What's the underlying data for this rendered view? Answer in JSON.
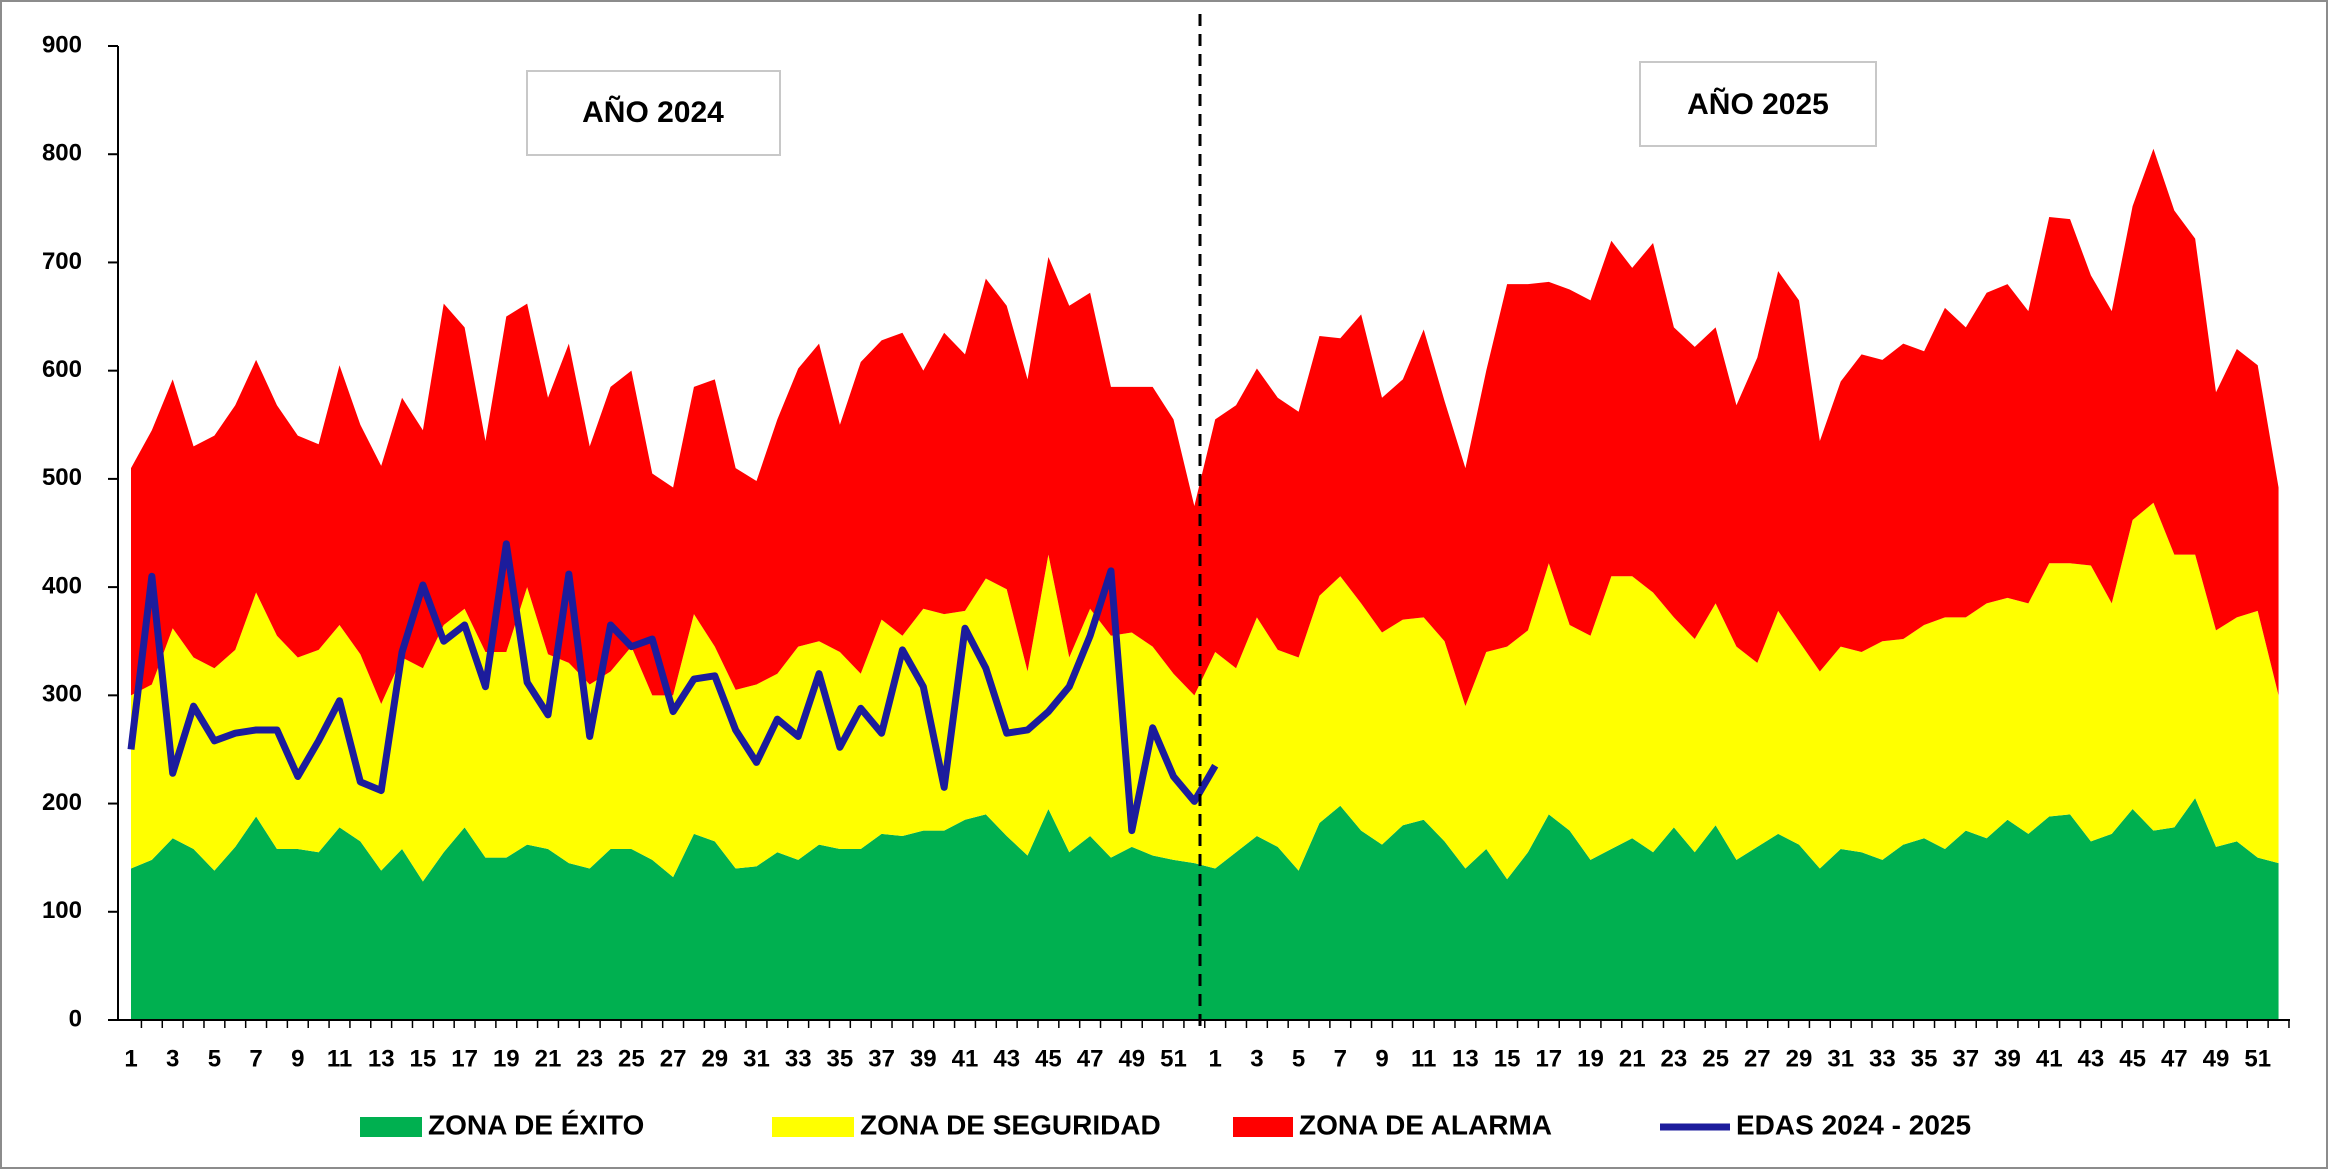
{
  "chart_data": {
    "type": "area",
    "stacked": true,
    "annotations": [
      "AÑO 2024",
      "AÑO 2025"
    ],
    "categories": [
      "1",
      null,
      "3",
      null,
      "5",
      null,
      "7",
      null,
      "9",
      null,
      "11",
      null,
      "13",
      null,
      "15",
      null,
      "17",
      null,
      "19",
      null,
      "21",
      null,
      "23",
      null,
      "25",
      null,
      "27",
      null,
      "29",
      null,
      "31",
      null,
      "33",
      null,
      "35",
      null,
      "37",
      null,
      "39",
      null,
      "41",
      null,
      "43",
      null,
      "45",
      null,
      "47",
      null,
      "49",
      null,
      "51",
      null,
      "1",
      null,
      "3",
      null,
      "5",
      null,
      "7",
      null,
      "9",
      null,
      "11",
      null,
      "13",
      null,
      "15",
      null,
      "17",
      null,
      "19",
      null,
      "21",
      null,
      "23",
      null,
      "25",
      null,
      "27",
      null,
      "29",
      null,
      "31",
      null,
      "33",
      null,
      "35",
      null,
      "37",
      null,
      "39",
      null,
      "41",
      null,
      "43",
      null,
      "45",
      null,
      "47",
      null,
      "49",
      null,
      "51",
      null
    ],
    "ylim": [
      0,
      900
    ],
    "yticks": [
      0,
      100,
      200,
      300,
      400,
      500,
      600,
      700,
      800,
      900
    ],
    "legend": "bottom",
    "series": [
      {
        "name": "ZONA DE ÉXITO",
        "color": "#00b050",
        "values": [
          140,
          148,
          168,
          158,
          138,
          160,
          188,
          158,
          158,
          155,
          178,
          165,
          138,
          158,
          128,
          155,
          178,
          150,
          150,
          162,
          158,
          145,
          140,
          158,
          158,
          148,
          132,
          172,
          165,
          140,
          142,
          155,
          148,
          162,
          158,
          158,
          172,
          170,
          175,
          175,
          185,
          190,
          170,
          152,
          195,
          155,
          170,
          150,
          160,
          152,
          148,
          145,
          140,
          155,
          170,
          160,
          138,
          182,
          198,
          175,
          162,
          180,
          185,
          165,
          140,
          158,
          130,
          155,
          190,
          175,
          148,
          158,
          168,
          155,
          178,
          155,
          180,
          148,
          160,
          172,
          162,
          140,
          158,
          155,
          148,
          162,
          168,
          158,
          175,
          168,
          185,
          172,
          188,
          190,
          165,
          172,
          195,
          175,
          178,
          205,
          160,
          165,
          150,
          145
        ]
      },
      {
        "name": "ZONA DE SEGURIDAD",
        "color": "#ffff00",
        "values": [
          160,
          162,
          194,
          177,
          187,
          182,
          207,
          197,
          177,
          187,
          187,
          173,
          154,
          177,
          197,
          210,
          202,
          190,
          190,
          238,
          180,
          185,
          170,
          164,
          187,
          152,
          168,
          203,
          180,
          165,
          168,
          165,
          197,
          188,
          182,
          162,
          198,
          185,
          205,
          200,
          193,
          218,
          228,
          170,
          235,
          180,
          210,
          205,
          198,
          193,
          172,
          155,
          200,
          170,
          202,
          182,
          197,
          210,
          212,
          210,
          196,
          190,
          187,
          185,
          150,
          182,
          215,
          205,
          232,
          190,
          207,
          252,
          242,
          240,
          194,
          197,
          205,
          197,
          170,
          206,
          188,
          182,
          187,
          185,
          202,
          190,
          197,
          214,
          197,
          217,
          205,
          213,
          234,
          232,
          255,
          213,
          267,
          303,
          252,
          225,
          200,
          207,
          228,
          155
        ]
      },
      {
        "name": "ZONA DE ALARMA",
        "color": "#ff0000",
        "values": [
          210,
          235,
          230,
          195,
          215,
          226,
          215,
          213,
          205,
          190,
          240,
          212,
          220,
          240,
          220,
          297,
          260,
          195,
          310,
          262,
          237,
          295,
          220,
          263,
          255,
          205,
          192,
          210,
          247,
          205,
          188,
          235,
          257,
          275,
          210,
          288,
          258,
          280,
          220,
          260,
          237,
          277,
          262,
          270,
          275,
          325,
          292,
          230,
          227,
          240,
          235,
          175,
          215,
          243,
          230,
          233,
          227,
          240,
          220,
          267,
          217,
          222,
          266,
          222,
          220,
          260,
          335,
          320,
          260,
          310,
          310,
          310,
          285,
          323,
          268,
          270,
          255,
          223,
          282,
          314,
          315,
          213,
          245,
          275,
          260,
          273,
          253,
          286,
          268,
          287,
          290,
          270,
          320,
          318,
          268,
          270,
          290,
          327,
          318,
          292,
          220,
          248,
          227,
          192
        ]
      },
      {
        "name": "EDAS 2024 - 2025",
        "type": "line",
        "color": "#1c1c9c",
        "values": [
          250,
          410,
          228,
          290,
          258,
          265,
          268,
          268,
          225,
          258,
          295,
          220,
          212,
          340,
          402,
          350,
          365,
          308,
          440,
          312,
          282,
          412,
          262,
          365,
          345,
          352,
          285,
          315,
          318,
          268,
          238,
          278,
          262,
          320,
          252,
          288,
          265,
          342,
          308,
          215,
          362,
          325,
          265,
          268,
          285,
          308,
          355,
          415,
          175,
          270,
          225,
          202,
          235,
          null,
          null,
          null,
          null,
          null,
          null,
          null,
          null,
          null,
          null,
          null,
          null,
          null,
          null,
          null,
          null,
          null,
          null,
          null,
          null,
          null,
          null,
          null,
          null,
          null,
          null,
          null,
          null,
          null,
          null,
          null,
          null,
          null,
          null,
          null,
          null,
          null,
          null,
          null,
          null,
          null,
          null,
          null,
          null,
          null,
          null,
          null,
          null,
          null,
          null,
          null
        ]
      }
    ]
  }
}
